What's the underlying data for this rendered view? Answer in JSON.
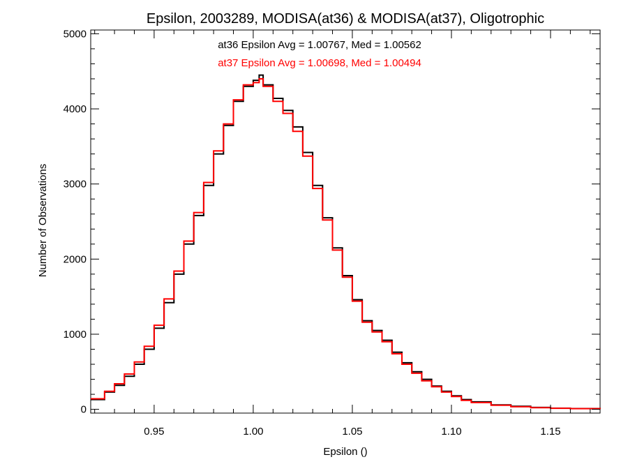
{
  "chart_data": {
    "type": "line",
    "title": "Epsilon, 2003289, MODISA(at36) & MODISA(at37), Oligotrophic",
    "xlabel": "Epsilon ()",
    "ylabel": "Number of Observations",
    "xlim": [
      0.918,
      1.175
    ],
    "ylim": [
      -50,
      5050
    ],
    "x_ticks": [
      0.95,
      1.0,
      1.05,
      1.1,
      1.15
    ],
    "x_tick_labels": [
      "0.95",
      "1.00",
      "1.05",
      "1.10",
      "1.15"
    ],
    "y_ticks": [
      0,
      1000,
      2000,
      3000,
      4000,
      5000
    ],
    "y_tick_labels": [
      "0",
      "1000",
      "2000",
      "3000",
      "4000",
      "5000"
    ],
    "grid": false,
    "annotations": [
      {
        "text": "at36 Epsilon Avg = 1.00767, Med = 1.00562",
        "color": "#000000"
      },
      {
        "text": "at37 Epsilon Avg = 1.00698, Med = 1.00494",
        "color": "#ff0000"
      }
    ],
    "series": [
      {
        "color": "#000000",
        "step": true,
        "x": [
          0.918,
          0.925,
          0.93,
          0.935,
          0.94,
          0.945,
          0.95,
          0.955,
          0.96,
          0.965,
          0.97,
          0.975,
          0.98,
          0.985,
          0.99,
          0.995,
          1.0,
          1.003,
          1.005,
          1.01,
          1.015,
          1.02,
          1.025,
          1.03,
          1.035,
          1.04,
          1.045,
          1.05,
          1.055,
          1.06,
          1.065,
          1.07,
          1.075,
          1.08,
          1.085,
          1.09,
          1.095,
          1.1,
          1.105,
          1.11,
          1.12,
          1.13,
          1.14,
          1.15,
          1.16,
          1.175
        ],
        "y": [
          130,
          230,
          320,
          440,
          600,
          800,
          1080,
          1420,
          1800,
          2200,
          2580,
          2980,
          3400,
          3780,
          4100,
          4300,
          4380,
          4450,
          4320,
          4140,
          3980,
          3760,
          3420,
          2980,
          2550,
          2150,
          1780,
          1460,
          1180,
          1050,
          920,
          760,
          620,
          500,
          400,
          310,
          240,
          180,
          130,
          100,
          60,
          40,
          25,
          15,
          10,
          5
        ]
      },
      {
        "color": "#ff0000",
        "step": true,
        "x": [
          0.918,
          0.925,
          0.93,
          0.935,
          0.94,
          0.945,
          0.95,
          0.955,
          0.96,
          0.965,
          0.97,
          0.975,
          0.98,
          0.985,
          0.99,
          0.995,
          1.0,
          1.003,
          1.005,
          1.01,
          1.015,
          1.02,
          1.025,
          1.03,
          1.035,
          1.04,
          1.045,
          1.05,
          1.055,
          1.06,
          1.065,
          1.07,
          1.075,
          1.08,
          1.085,
          1.09,
          1.095,
          1.1,
          1.105,
          1.11,
          1.12,
          1.13,
          1.14,
          1.15,
          1.16,
          1.175
        ],
        "y": [
          140,
          240,
          340,
          470,
          630,
          840,
          1120,
          1470,
          1840,
          2240,
          2620,
          3020,
          3440,
          3800,
          4120,
          4320,
          4350,
          4400,
          4300,
          4100,
          3940,
          3700,
          3370,
          2940,
          2520,
          2120,
          1760,
          1440,
          1160,
          1030,
          900,
          740,
          600,
          480,
          380,
          300,
          230,
          170,
          120,
          90,
          55,
          35,
          22,
          14,
          9,
          5
        ]
      }
    ]
  }
}
